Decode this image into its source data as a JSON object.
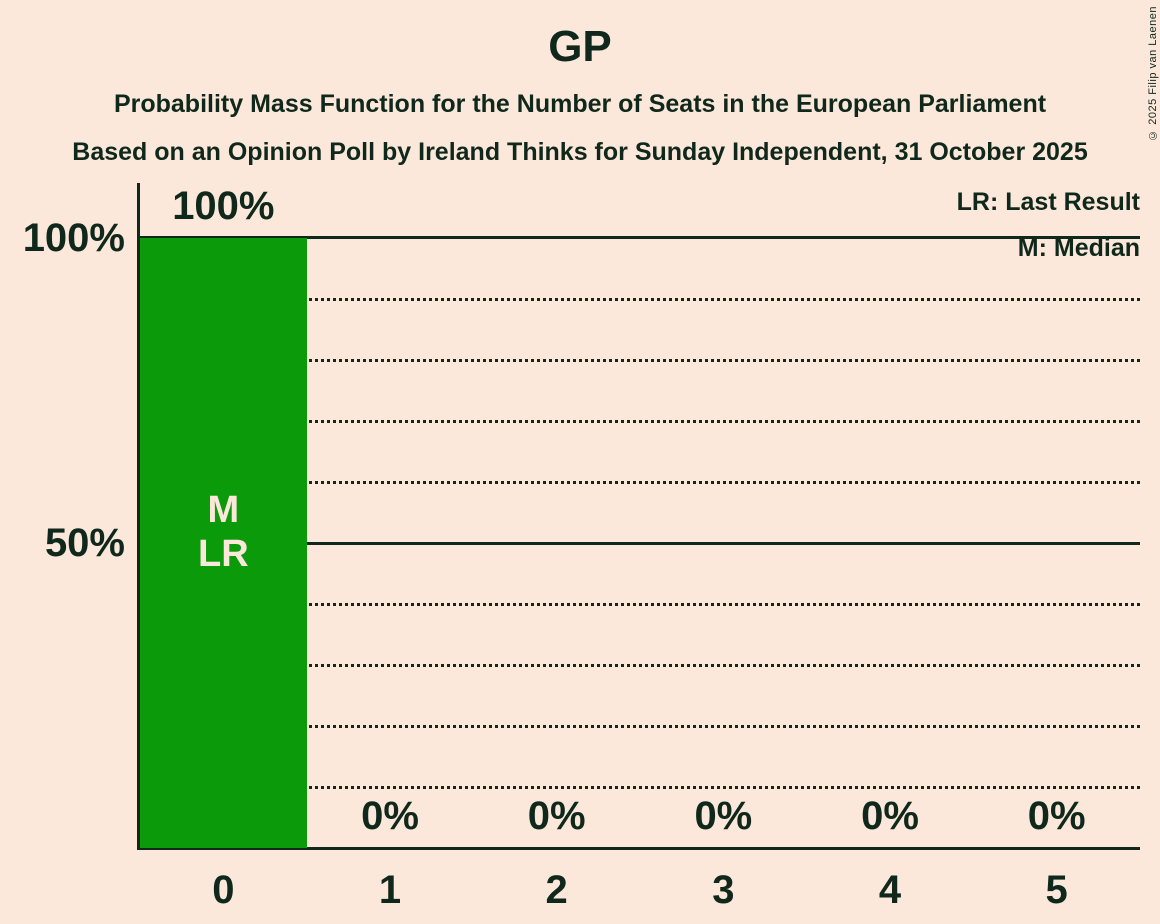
{
  "header": {
    "title": "GP",
    "subtitle_line1": "Probability Mass Function for the Number of Seats in the European Parliament",
    "subtitle_line2": "Based on an Opinion Poll by Ireland Thinks for Sunday Independent, 31 October 2025"
  },
  "copyright": "© 2025 Filip van Laenen",
  "legend": {
    "last_result": "LR: Last Result",
    "median": "M: Median"
  },
  "colors": {
    "background": "#FBE8DB",
    "text": "#10281B",
    "bar": "#0A9A0A"
  },
  "chart_data": {
    "type": "bar",
    "title": "GP",
    "categories": [
      "0",
      "1",
      "2",
      "3",
      "4",
      "5"
    ],
    "values": [
      100,
      0,
      0,
      0,
      0,
      0
    ],
    "value_labels": [
      "100%",
      "0%",
      "0%",
      "0%",
      "0%",
      "0%"
    ],
    "y_tick_labels": [
      "100%",
      "50%"
    ],
    "ylim": [
      0,
      100
    ],
    "grid_solid_pct": [
      100,
      50
    ],
    "grid_dotted_pct": [
      90,
      80,
      70,
      60,
      40,
      30,
      20,
      10
    ],
    "legend_position": "top-right",
    "bar_annotations": {
      "category": "0",
      "lines": [
        "M",
        "LR"
      ]
    }
  }
}
